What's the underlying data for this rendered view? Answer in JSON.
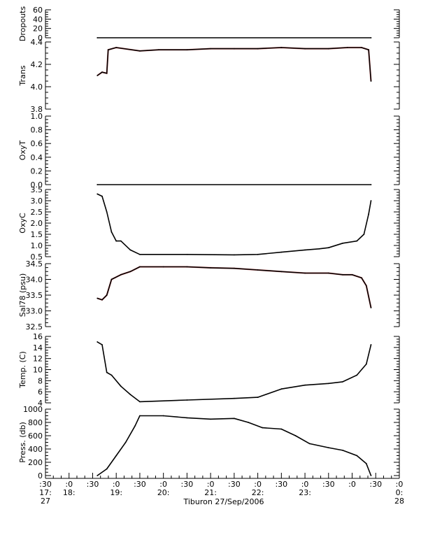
{
  "colors": {
    "trace": "#000000",
    "qc": "#d01010",
    "axis": "#000000"
  },
  "xaxis": {
    "domain": [
      17.0,
      24.5
    ],
    "ticks": [
      {
        "t": 17.0,
        "label": ":30"
      },
      {
        "t": 17.5,
        "label": ":0"
      },
      {
        "t": 18.0,
        "label": ":30"
      },
      {
        "t": 18.5,
        "label": ":0"
      },
      {
        "t": 19.0,
        "label": ":30"
      },
      {
        "t": 19.5,
        "label": ":0"
      },
      {
        "t": 20.0,
        "label": ":30"
      },
      {
        "t": 20.5,
        "label": ":0"
      },
      {
        "t": 21.0,
        "label": ":30"
      },
      {
        "t": 21.5,
        "label": ":0"
      },
      {
        "t": 22.0,
        "label": ":30"
      },
      {
        "t": 22.5,
        "label": ":0"
      },
      {
        "t": 23.0,
        "label": ":30"
      },
      {
        "t": 23.5,
        "label": ":0"
      },
      {
        "t": 24.0,
        "label": ":30"
      },
      {
        "t": 24.5,
        "label": ":0"
      }
    ],
    "hour_labels": [
      {
        "t": 17.0,
        "label": "17:"
      },
      {
        "t": 17.5,
        "label": "18:"
      },
      {
        "t": 18.5,
        "label": "19:"
      },
      {
        "t": 19.5,
        "label": "20:"
      },
      {
        "t": 20.5,
        "label": "21:"
      },
      {
        "t": 21.5,
        "label": "22:"
      },
      {
        "t": 22.5,
        "label": "23:"
      },
      {
        "t": 24.5,
        "label": "0:"
      }
    ],
    "day_labels": [
      {
        "t": 17.0,
        "label": "27"
      },
      {
        "t": 24.5,
        "label": "28"
      }
    ],
    "title": "Tiburon 27/Sep/2006"
  },
  "chart_data": [
    {
      "type": "line",
      "ylabel": "Dropouts",
      "ylim": [
        0,
        60
      ],
      "yticks": [
        "60",
        "40",
        "20",
        "0"
      ],
      "ytick_values": [
        60,
        40,
        20,
        0
      ],
      "series": [
        {
          "x": [
            18.1,
            23.9
          ],
          "y": [
            0,
            0
          ]
        }
      ]
    },
    {
      "type": "line",
      "ylabel": "Trans",
      "ylim": [
        3.8,
        4.4
      ],
      "yticks": [
        "4.4",
        "4.2",
        "4.0",
        "3.8"
      ],
      "ytick_values": [
        4.4,
        4.2,
        4.0,
        3.8
      ],
      "series": [
        {
          "x": [
            18.1,
            18.2,
            18.3,
            18.33,
            18.5,
            19.0,
            19.4,
            20.0,
            20.5,
            21.0,
            21.5,
            22.0,
            22.5,
            23.0,
            23.4,
            23.7,
            23.85,
            23.9
          ],
          "y": [
            4.1,
            4.13,
            4.12,
            4.33,
            4.35,
            4.32,
            4.33,
            4.33,
            4.34,
            4.34,
            4.34,
            4.35,
            4.34,
            4.34,
            4.35,
            4.35,
            4.33,
            4.05
          ]
        }
      ]
    },
    {
      "type": "line",
      "ylabel": "OxyT",
      "ylim": [
        0.0,
        1.0
      ],
      "yticks": [
        "1.0",
        "0.8",
        "0.6",
        "0.4",
        "0.2",
        "0.0"
      ],
      "ytick_values": [
        1.0,
        0.8,
        0.6,
        0.4,
        0.2,
        0.0
      ],
      "series": [
        {
          "x": [
            18.1,
            23.9
          ],
          "y": [
            0.0,
            0.0
          ]
        }
      ]
    },
    {
      "type": "line",
      "ylabel": "OxyC",
      "ylim": [
        0.5,
        3.5
      ],
      "yticks": [
        "3.5",
        "3.0",
        "2.5",
        "2.0",
        "1.5",
        "1.0",
        "0.5"
      ],
      "ytick_values": [
        3.5,
        3.0,
        2.5,
        2.0,
        1.5,
        1.0,
        0.5
      ],
      "series": [
        {
          "x": [
            18.1,
            18.2,
            18.3,
            18.4,
            18.5,
            18.6,
            18.8,
            19.0,
            20.0,
            21.0,
            21.5,
            22.0,
            22.5,
            22.8,
            23.0,
            23.3,
            23.6,
            23.75,
            23.85,
            23.9
          ],
          "y": [
            3.3,
            3.2,
            2.5,
            1.6,
            1.2,
            1.2,
            0.8,
            0.6,
            0.6,
            0.58,
            0.6,
            0.7,
            0.8,
            0.85,
            0.9,
            1.1,
            1.2,
            1.5,
            2.4,
            3.0
          ]
        }
      ]
    },
    {
      "type": "line",
      "ylabel": "Sal78 (psu)",
      "ylim": [
        32.5,
        34.5
      ],
      "yticks": [
        "34.5",
        "34.0",
        "33.5",
        "33.0",
        "32.5"
      ],
      "ytick_values": [
        34.5,
        34.0,
        33.5,
        33.0,
        32.5
      ],
      "series": [
        {
          "x": [
            18.1,
            18.2,
            18.3,
            18.4,
            18.6,
            18.8,
            19.0,
            19.5,
            20.0,
            20.5,
            21.0,
            21.5,
            22.0,
            22.5,
            23.0,
            23.3,
            23.5,
            23.7,
            23.8,
            23.9
          ],
          "y": [
            33.4,
            33.35,
            33.5,
            34.0,
            34.15,
            34.25,
            34.4,
            34.4,
            34.4,
            34.37,
            34.35,
            34.3,
            34.25,
            34.2,
            34.2,
            34.15,
            34.15,
            34.05,
            33.8,
            33.1
          ]
        }
      ]
    },
    {
      "type": "line",
      "ylabel": "Temp. (C)",
      "ylim": [
        4,
        16
      ],
      "yticks": [
        "16",
        "14",
        "12",
        "10",
        "8",
        "6",
        "4"
      ],
      "ytick_values": [
        16,
        14,
        12,
        10,
        8,
        6,
        4
      ],
      "series": [
        {
          "x": [
            18.1,
            18.2,
            18.3,
            18.4,
            18.6,
            18.8,
            19.0,
            20.0,
            21.0,
            21.5,
            22.0,
            22.5,
            23.0,
            23.3,
            23.6,
            23.8,
            23.9
          ],
          "y": [
            15,
            14.5,
            9.5,
            9,
            7,
            5.5,
            4.2,
            4.5,
            4.8,
            5,
            6.5,
            7.2,
            7.5,
            7.8,
            9,
            11,
            14.5
          ]
        }
      ]
    },
    {
      "type": "line",
      "ylabel": "Press. (db)",
      "ylim": [
        0,
        1000
      ],
      "yticks": [
        "1000",
        "800",
        "600",
        "400",
        "200",
        "0"
      ],
      "ytick_values": [
        1000,
        800,
        600,
        400,
        200,
        0
      ],
      "series": [
        {
          "x": [
            18.1,
            18.3,
            18.5,
            18.7,
            18.9,
            19.0,
            19.5,
            20.0,
            20.5,
            21.0,
            21.3,
            21.6,
            22.0,
            22.3,
            22.6,
            23.0,
            23.3,
            23.6,
            23.8,
            23.9
          ],
          "y": [
            0,
            100,
            300,
            500,
            750,
            900,
            900,
            870,
            850,
            860,
            800,
            720,
            700,
            600,
            480,
            420,
            380,
            300,
            180,
            0
          ]
        }
      ]
    }
  ]
}
